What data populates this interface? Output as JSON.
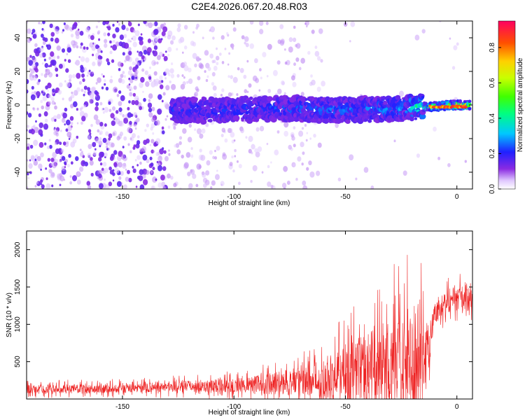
{
  "title": "C2E4.2026.067.20.48.R03",
  "colors": {
    "snr_line": "#ee2222",
    "axis": "#000000"
  },
  "chart_data": [
    {
      "type": "heatmap",
      "name": "spectrogram",
      "xlabel": "Height of straight line (km)",
      "ylabel": "Frequency (Hz)",
      "xlim": [
        -193,
        7
      ],
      "ylim": [
        -50,
        50
      ],
      "xticks": [
        -150,
        -100,
        -50,
        0
      ],
      "yticks": [
        -40,
        -20,
        0,
        20,
        40
      ],
      "grid": false,
      "signal_track": {
        "description_points_x": [
          -125,
          -100,
          -75,
          -50,
          -25,
          0
        ],
        "center_freq_hz": [
          -3,
          -3,
          -2,
          -3,
          -2,
          0
        ],
        "approx_peak_amplitude": [
          0.25,
          0.25,
          0.3,
          0.3,
          0.35,
          0.85
        ]
      },
      "colorbar": {
        "label": "Normalized spectral amplitude",
        "ticks": [
          0.0,
          0.2,
          0.4,
          0.6,
          0.8
        ],
        "range": [
          0,
          0.95
        ]
      }
    },
    {
      "type": "line",
      "name": "snr",
      "xlabel": "Height of straight line (km)",
      "ylabel": "SNR (10 * v/v)",
      "xlim": [
        -193,
        7
      ],
      "ylim": [
        0,
        2250
      ],
      "xticks": [
        -150,
        -100,
        -50,
        0
      ],
      "yticks": [
        500,
        1000,
        1500,
        2000
      ],
      "grid": false,
      "envelope": {
        "x": [
          -193,
          -150,
          -125,
          -100,
          -75,
          -60,
          -50,
          -40,
          -25,
          -18,
          -15,
          -10,
          -5,
          0,
          7
        ],
        "base": [
          130,
          140,
          170,
          180,
          220,
          260,
          350,
          450,
          500,
          500,
          400,
          1150,
          1300,
          1380,
          1300
        ],
        "amp": [
          120,
          130,
          160,
          200,
          380,
          500,
          900,
          1100,
          1400,
          1600,
          1300,
          300,
          350,
          400,
          300
        ]
      }
    }
  ]
}
